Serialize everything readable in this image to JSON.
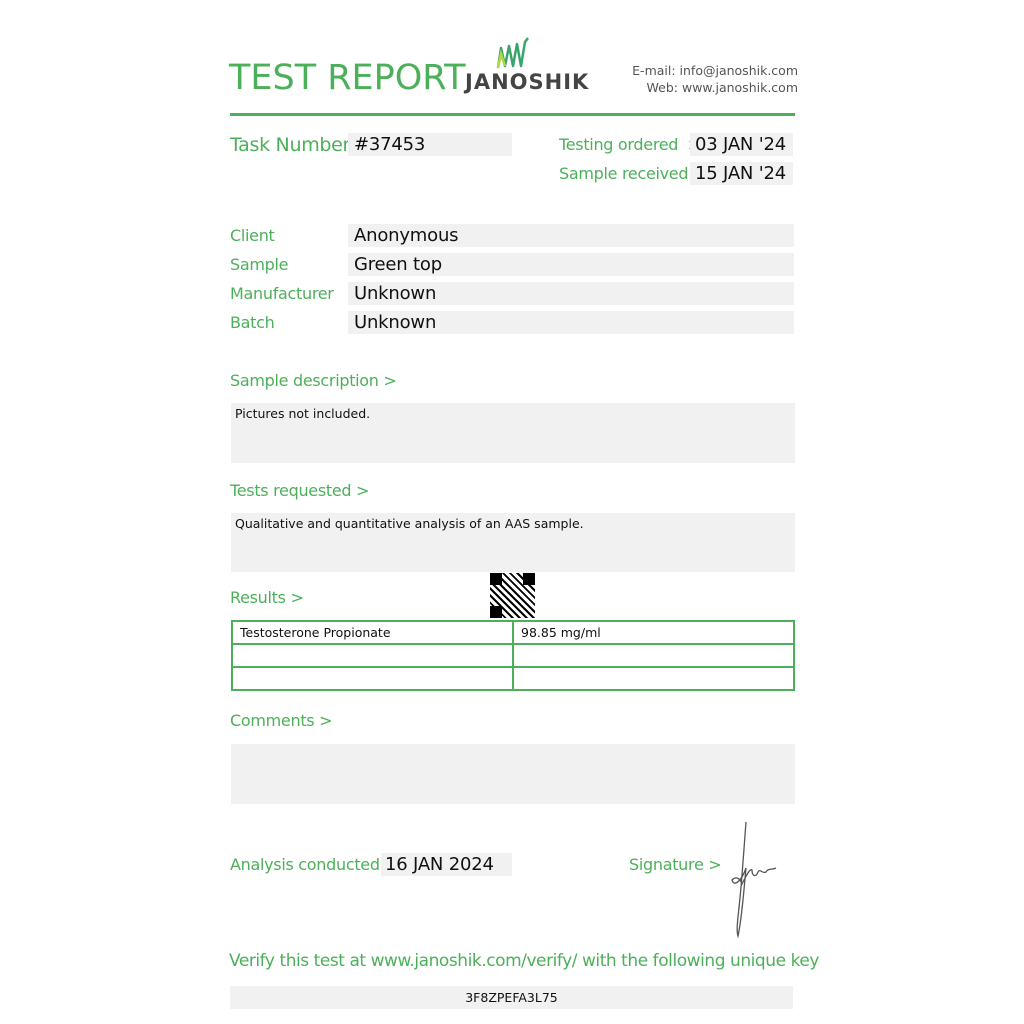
{
  "header": {
    "title": "TEST REPORT",
    "logo_text": "JANOSHIK",
    "email": "E-mail: info@janoshik.com",
    "web": "Web: www.janoshik.com"
  },
  "task": {
    "label": "Task Number",
    "value": "#37453"
  },
  "dates": {
    "ordered_label": "Testing ordered  >",
    "ordered_value": "03 JAN '24",
    "received_label": "Sample received >",
    "received_value": "15 JAN '24"
  },
  "fields": [
    {
      "label": "Client",
      "value": "Anonymous"
    },
    {
      "label": "Sample",
      "value": "Green top"
    },
    {
      "label": "Manufacturer",
      "value": "Unknown"
    },
    {
      "label": "Batch",
      "value": "Unknown"
    }
  ],
  "sample_description": {
    "label": "Sample description >",
    "text": "Pictures not included."
  },
  "tests_requested": {
    "label": "Tests requested >",
    "text": "Qualitative and quantitative analysis of an AAS sample."
  },
  "results": {
    "label": "Results >",
    "rows": [
      [
        "Testosterone Propionate",
        "98.85 mg/ml"
      ],
      [
        "",
        ""
      ],
      [
        "",
        ""
      ]
    ]
  },
  "comments": {
    "label": "Comments >",
    "text": ""
  },
  "analysis": {
    "label": "Analysis conducted >",
    "value": "16 JAN 2024"
  },
  "signature": {
    "label": "Signature >"
  },
  "verify": {
    "text": "Verify this test at www.janoshik.com/verify/ with the following unique key",
    "key": "3F8ZPEFA3L75"
  },
  "colors": {
    "accent": "#4cb05a",
    "field_bg": "#f1f1f1"
  }
}
